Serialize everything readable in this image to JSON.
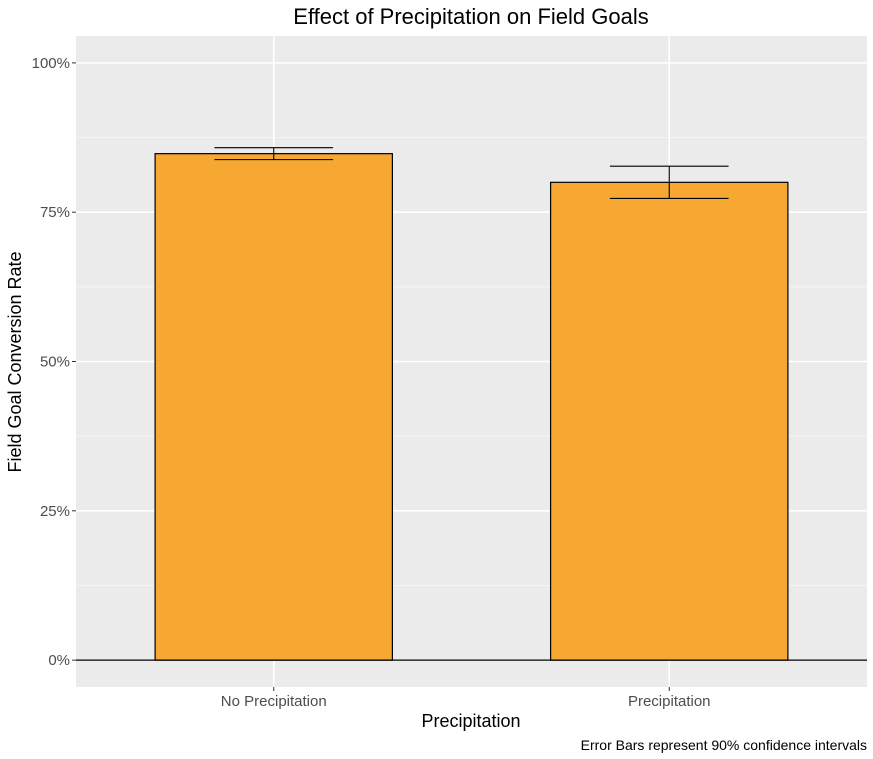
{
  "chart_data": {
    "type": "bar",
    "title": "Effect of Precipitation on Field Goals",
    "xlabel": "Precipitation",
    "ylabel": "Field Goal Conversion Rate",
    "caption": "Error Bars represent 90% confidence intervals",
    "categories": [
      "No Precipitation",
      "Precipitation"
    ],
    "values": [
      0.848,
      0.8
    ],
    "error_low": [
      0.838,
      0.773
    ],
    "error_high": [
      0.858,
      0.827
    ],
    "ylim": [
      -0.045,
      1.045
    ],
    "yticks": [
      0,
      0.25,
      0.5,
      0.75,
      1.0
    ],
    "ytick_labels": [
      "0%",
      "25%",
      "50%",
      "75%",
      "100%"
    ],
    "grid": true,
    "legend": "none",
    "colors": {
      "panel_background": "#ebebeb",
      "grid_major": "#ffffff",
      "grid_minor": "#f5f5f5",
      "bar_fill": "#f6a833",
      "bar_outline": "#000000",
      "baseline": "#000000",
      "error_bar": "#000000"
    }
  }
}
